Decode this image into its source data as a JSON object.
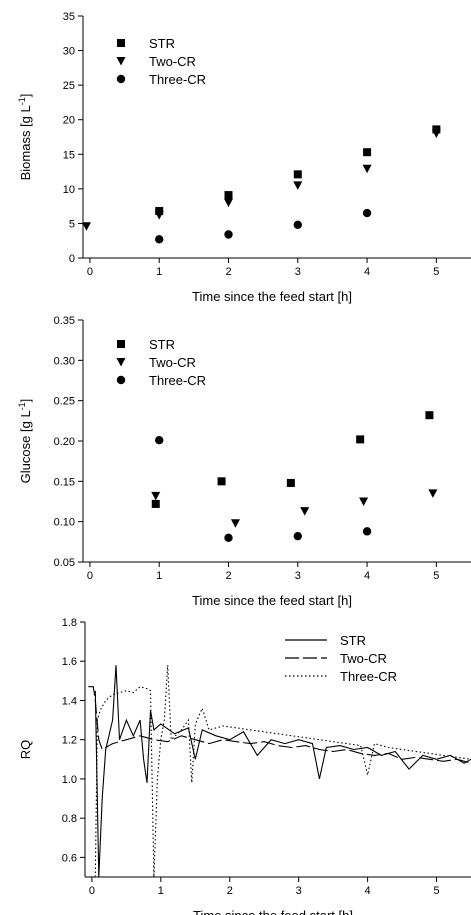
{
  "chart_data": [
    {
      "type": "scatter",
      "xlabel": "Time since the feed start [h]",
      "ylabel_main": "Biomass [g L",
      "ylabel_sup": "-1",
      "ylabel_end": "]",
      "xlim": [
        -0.1,
        5.5
      ],
      "ylim": [
        0,
        35
      ],
      "xticks": [
        0,
        1,
        2,
        3,
        4,
        5
      ],
      "yticks": [
        0,
        5,
        10,
        15,
        20,
        25,
        30,
        35
      ],
      "ytick_labels": [
        "0",
        "5",
        "10",
        "15",
        "20",
        "25",
        "30",
        "35"
      ],
      "legend_position": "top-left",
      "series": [
        {
          "name": "STR",
          "marker": "square",
          "points": [
            [
              1,
              6.8
            ],
            [
              2,
              9.1
            ],
            [
              3,
              12.1
            ],
            [
              4,
              15.3
            ],
            [
              5,
              18.6
            ]
          ]
        },
        {
          "name": "Two-CR",
          "marker": "triangle-down",
          "points": [
            [
              -0.05,
              4.6
            ],
            [
              1,
              6.2
            ],
            [
              2,
              8.0
            ],
            [
              3,
              10.5
            ],
            [
              4,
              12.9
            ],
            [
              5,
              18.0
            ]
          ]
        },
        {
          "name": "Three-CR",
          "marker": "circle",
          "points": [
            [
              1,
              2.7
            ],
            [
              2,
              3.4
            ],
            [
              3,
              4.8
            ],
            [
              4,
              6.5
            ]
          ]
        }
      ]
    },
    {
      "type": "scatter",
      "xlabel": "Time since the feed start [h]",
      "ylabel_main": "Glucose [g L",
      "ylabel_sup": "-1",
      "ylabel_end": "]",
      "xlim": [
        -0.1,
        5.5
      ],
      "ylim": [
        0.05,
        0.35
      ],
      "xticks": [
        0,
        1,
        2,
        3,
        4,
        5
      ],
      "yticks": [
        0.05,
        0.1,
        0.15,
        0.2,
        0.25,
        0.3,
        0.35
      ],
      "ytick_labels": [
        "0.05",
        "0.10",
        "0.15",
        "0.20",
        "0.25",
        "0.30",
        "0.35"
      ],
      "legend_position": "top-left",
      "series": [
        {
          "name": "STR",
          "marker": "square",
          "points": [
            [
              0.95,
              0.122
            ],
            [
              1.9,
              0.15
            ],
            [
              2.9,
              0.148
            ],
            [
              3.9,
              0.202
            ],
            [
              4.9,
              0.232
            ]
          ]
        },
        {
          "name": "Two-CR",
          "marker": "triangle-down",
          "points": [
            [
              0.95,
              0.132
            ],
            [
              2.1,
              0.098
            ],
            [
              3.1,
              0.113
            ],
            [
              3.95,
              0.125
            ],
            [
              4.95,
              0.135
            ]
          ]
        },
        {
          "name": "Three-CR",
          "marker": "circle",
          "points": [
            [
              1.0,
              0.201
            ],
            [
              2.0,
              0.08
            ],
            [
              3.0,
              0.082
            ],
            [
              4.0,
              0.088
            ]
          ]
        }
      ]
    },
    {
      "type": "line",
      "xlabel": "Time since the feed start [h]",
      "ylabel": "RQ",
      "xlim": [
        -0.1,
        5.5
      ],
      "ylim": [
        0.5,
        1.8
      ],
      "xticks": [
        0,
        1,
        2,
        3,
        4,
        5
      ],
      "yticks": [
        0.6,
        0.8,
        1.0,
        1.2,
        1.4,
        1.6,
        1.8
      ],
      "ytick_labels": [
        "0.6",
        "0.8",
        "1.0",
        "1.2",
        "1.4",
        "1.6",
        "1.8"
      ],
      "legend_position": "top-right",
      "series": [
        {
          "name": "STR",
          "dash": "solid",
          "points": [
            [
              0.05,
              1.45
            ],
            [
              0.1,
              0.5
            ],
            [
              0.15,
              0.9
            ],
            [
              0.2,
              1.15
            ],
            [
              0.3,
              1.3
            ],
            [
              0.35,
              1.58
            ],
            [
              0.4,
              1.2
            ],
            [
              0.5,
              1.3
            ],
            [
              0.6,
              1.22
            ],
            [
              0.7,
              1.3
            ],
            [
              0.75,
              1.1
            ],
            [
              0.8,
              0.98
            ],
            [
              0.85,
              1.35
            ],
            [
              0.9,
              1.25
            ],
            [
              1.0,
              1.28
            ],
            [
              1.2,
              1.23
            ],
            [
              1.4,
              1.26
            ],
            [
              1.5,
              1.1
            ],
            [
              1.6,
              1.25
            ],
            [
              1.8,
              1.22
            ],
            [
              2.0,
              1.2
            ],
            [
              2.2,
              1.24
            ],
            [
              2.4,
              1.12
            ],
            [
              2.6,
              1.2
            ],
            [
              2.8,
              1.18
            ],
            [
              3.0,
              1.2
            ],
            [
              3.2,
              1.18
            ],
            [
              3.3,
              1.0
            ],
            [
              3.4,
              1.16
            ],
            [
              3.6,
              1.17
            ],
            [
              3.8,
              1.15
            ],
            [
              4.0,
              1.16
            ],
            [
              4.2,
              1.12
            ],
            [
              4.4,
              1.14
            ],
            [
              4.6,
              1.05
            ],
            [
              4.8,
              1.12
            ],
            [
              5.0,
              1.1
            ],
            [
              5.2,
              1.12
            ],
            [
              5.4,
              1.08
            ],
            [
              5.5,
              1.1
            ]
          ]
        },
        {
          "name": "Two-CR",
          "dash": "long",
          "points": [
            [
              -0.05,
              1.47
            ],
            [
              0.02,
              1.47
            ],
            [
              0.05,
              1.4
            ],
            [
              0.1,
              1.2
            ],
            [
              0.15,
              1.15
            ],
            [
              0.3,
              1.18
            ],
            [
              0.5,
              1.2
            ],
            [
              0.7,
              1.22
            ],
            [
              0.9,
              1.2
            ],
            [
              1.1,
              1.19
            ],
            [
              1.3,
              1.22
            ],
            [
              1.5,
              1.2
            ],
            [
              1.7,
              1.18
            ],
            [
              1.9,
              1.2
            ],
            [
              2.1,
              1.19
            ],
            [
              2.3,
              1.18
            ],
            [
              2.5,
              1.19
            ],
            [
              2.7,
              1.17
            ],
            [
              2.9,
              1.16
            ],
            [
              3.1,
              1.17
            ],
            [
              3.3,
              1.15
            ],
            [
              3.5,
              1.14
            ],
            [
              3.7,
              1.15
            ],
            [
              3.9,
              1.13
            ],
            [
              4.1,
              1.12
            ],
            [
              4.3,
              1.13
            ],
            [
              4.5,
              1.1
            ],
            [
              4.7,
              1.11
            ],
            [
              4.9,
              1.1
            ],
            [
              5.1,
              1.09
            ],
            [
              5.3,
              1.1
            ],
            [
              5.5,
              1.08
            ]
          ]
        },
        {
          "name": "Three-CR",
          "dash": "dotted",
          "points": [
            [
              0.05,
              0.5
            ],
            [
              0.08,
              1.3
            ],
            [
              0.12,
              1.35
            ],
            [
              0.2,
              1.4
            ],
            [
              0.3,
              1.43
            ],
            [
              0.5,
              1.45
            ],
            [
              0.6,
              1.44
            ],
            [
              0.7,
              1.47
            ],
            [
              0.8,
              1.46
            ],
            [
              0.85,
              1.45
            ],
            [
              0.9,
              0.5
            ],
            [
              0.95,
              1.0
            ],
            [
              1.0,
              1.2
            ],
            [
              1.05,
              1.3
            ],
            [
              1.1,
              1.58
            ],
            [
              1.15,
              1.2
            ],
            [
              1.3,
              1.25
            ],
            [
              1.4,
              1.3
            ],
            [
              1.45,
              0.98
            ],
            [
              1.5,
              1.28
            ],
            [
              1.6,
              1.36
            ],
            [
              1.7,
              1.25
            ],
            [
              1.9,
              1.27
            ],
            [
              2.1,
              1.26
            ],
            [
              2.3,
              1.25
            ],
            [
              2.5,
              1.24
            ],
            [
              2.7,
              1.23
            ],
            [
              2.9,
              1.22
            ],
            [
              3.1,
              1.21
            ],
            [
              3.3,
              1.2
            ],
            [
              3.5,
              1.19
            ],
            [
              3.7,
              1.18
            ],
            [
              3.9,
              1.17
            ],
            [
              4.0,
              1.02
            ],
            [
              4.1,
              1.18
            ],
            [
              4.3,
              1.16
            ],
            [
              4.5,
              1.15
            ],
            [
              4.7,
              1.14
            ],
            [
              4.9,
              1.13
            ],
            [
              5.1,
              1.12
            ],
            [
              5.3,
              1.11
            ],
            [
              5.5,
              1.1
            ]
          ]
        }
      ]
    }
  ]
}
